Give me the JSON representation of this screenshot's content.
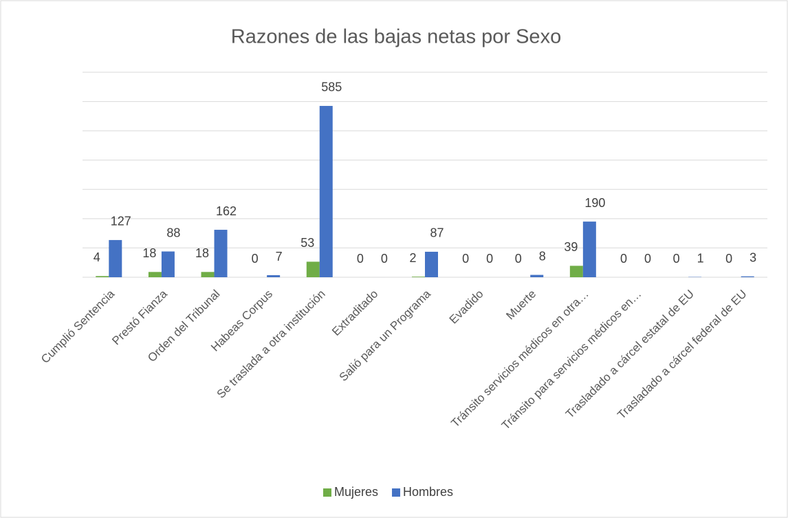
{
  "chart_data": {
    "type": "bar",
    "title": "Razones de las bajas netas por Sexo",
    "categories": [
      "Cumplió Sentencia",
      "Prestó Fianza",
      "Orden del Tribunal",
      "Habeas Corpus",
      "Se traslada a otra institución",
      "Extraditado",
      "Salió para un Programa",
      "Evadido",
      "Muerte",
      "Tránsito servicios médicos en otra…",
      "Tránsito para servicios médicos en…",
      "Trasladado a cárcel estatal de EU",
      "Trasladado a cárcel federal de EU"
    ],
    "series": [
      {
        "name": "Mujeres",
        "color": "#70ad47",
        "values": [
          4,
          18,
          18,
          0,
          53,
          0,
          2,
          0,
          0,
          39,
          0,
          0,
          0
        ]
      },
      {
        "name": "Hombres",
        "color": "#4472c4",
        "values": [
          127,
          88,
          162,
          7,
          585,
          0,
          87,
          0,
          8,
          190,
          0,
          1,
          3
        ]
      }
    ],
    "ylim": [
      0,
      700
    ],
    "yticks": [
      0,
      100,
      200,
      300,
      400,
      500,
      600,
      700
    ],
    "grid": true,
    "legend": "bottom"
  }
}
